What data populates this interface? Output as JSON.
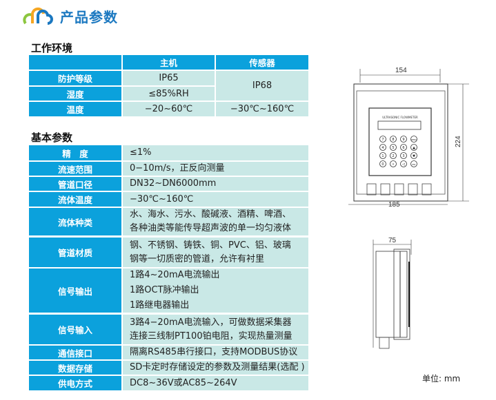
{
  "header": {
    "title": "产品参数",
    "logo_icon": "three-arc-logo-icon",
    "title_color": "#1b78c0"
  },
  "work_env": {
    "heading": "工作环境",
    "columns": [
      "",
      "主机",
      "传感器"
    ],
    "rows": [
      {
        "label": "防护等级",
        "host": "IP65"
      },
      {
        "label": "湿度",
        "host": "≤85%RH"
      },
      {
        "label": "温度",
        "host": "−20~60℃",
        "sensor": "−30℃~160℃"
      }
    ],
    "sensor_merged": "IP68"
  },
  "basic": {
    "heading": "基本参数",
    "rows": [
      {
        "label": "精　度",
        "lines": [
          "≤1%"
        ]
      },
      {
        "label": "流速范围",
        "lines": [
          "0−10m/s，正反向测量"
        ]
      },
      {
        "label": "管道口径",
        "lines": [
          "DN32~DN6000mm"
        ]
      },
      {
        "label": "流体温度",
        "lines": [
          "−30℃~160℃"
        ]
      },
      {
        "label": "流体种类",
        "lines": [
          "水、海水、污水、酸碱液、酒精、啤酒、",
          "各种油类等能传导超声波的单一均匀液体"
        ]
      },
      {
        "label": "管道材质",
        "lines": [
          "钢、不锈钢、铸铁、铜、PVC、铝、玻璃",
          "钢等一切质密的管道，允许有衬里"
        ]
      },
      {
        "label": "信号输出",
        "lines": [
          "1路4~20mA电流输出",
          "1路OCT脉冲输出",
          "1路继电器输出"
        ]
      },
      {
        "label": "信号输入",
        "lines": [
          "3路4−20mA电流输入，可做数据采集器",
          "连接三线制PT100铂电阻，实现热量测量"
        ]
      },
      {
        "label": "通信接口",
        "lines": [
          "隔离RS485串行接口，支持MODBUS协议"
        ]
      },
      {
        "label": "数据存储",
        "lines": [
          "SD卡定时存储设定的参数及测量结果(选配 )"
        ]
      },
      {
        "label": "供电方式",
        "lines": [
          "DC8~36V或AC85~264V"
        ]
      }
    ]
  },
  "colors": {
    "label_bg": "#0ba1dc",
    "value_bg": "#c9e8e6"
  },
  "drawing": {
    "front": {
      "width_top": "154",
      "height": "224",
      "width_bottom": "185",
      "panel_text": "ULTRASONIC FLOWMETER",
      "keys": [
        "7",
        "8",
        "9",
        "MENU",
        "4",
        "5",
        "6",
        "▲",
        "1",
        "2",
        "3",
        "▼",
        "0",
        "•",
        "◁",
        "ENT"
      ]
    },
    "side": {
      "depth": "75"
    },
    "unit": "单位: mm"
  }
}
